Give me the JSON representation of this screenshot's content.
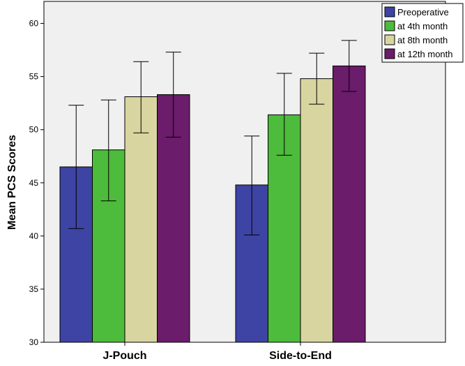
{
  "chart_data": {
    "type": "bar",
    "title": "",
    "xlabel": "",
    "ylabel": "Mean PCS Scores",
    "ylim": [
      30,
      62
    ],
    "yticks": [
      30,
      35,
      40,
      45,
      50,
      55,
      60
    ],
    "categories": [
      "J-Pouch",
      "Side-to-End"
    ],
    "series": [
      {
        "name": "Preoperative",
        "color": "#3d44a3",
        "values": [
          46.5,
          44.8
        ],
        "err_low": [
          40.7,
          40.1
        ],
        "err_high": [
          52.3,
          49.4
        ]
      },
      {
        "name": "at 4th month",
        "color": "#4dbb3b",
        "values": [
          48.1,
          51.4
        ],
        "err_low": [
          43.3,
          47.6
        ],
        "err_high": [
          52.8,
          55.3
        ]
      },
      {
        "name": "at 8th month",
        "color": "#d9d5a0",
        "values": [
          53.1,
          54.8
        ],
        "err_low": [
          49.7,
          52.4
        ],
        "err_high": [
          56.4,
          57.2
        ]
      },
      {
        "name": "at 12th month",
        "color": "#6b1c6a",
        "values": [
          53.3,
          56.0
        ],
        "err_low": [
          49.3,
          53.6
        ],
        "err_high": [
          57.3,
          58.4
        ]
      }
    ],
    "grid": false,
    "legend_position": "top-right",
    "error_bars": true
  }
}
